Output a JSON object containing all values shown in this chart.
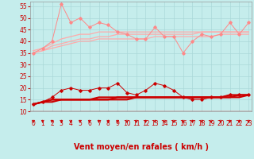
{
  "xlabel": "Vent moyen/en rafales ( km/h )",
  "background_color": "#c5edec",
  "grid_color": "#aad8d8",
  "x": [
    0,
    1,
    2,
    3,
    4,
    5,
    6,
    7,
    8,
    9,
    10,
    11,
    12,
    13,
    14,
    15,
    16,
    17,
    18,
    19,
    20,
    21,
    22,
    23
  ],
  "series_top_pink_spiky": [
    35,
    37,
    40,
    56,
    48,
    50,
    46,
    48,
    47,
    44,
    43,
    41,
    41,
    46,
    42,
    42,
    35,
    40,
    43,
    42,
    43,
    48,
    43,
    48
  ],
  "series_top_line1": [
    36,
    37,
    39,
    41,
    42,
    43,
    43,
    44,
    44,
    44,
    44,
    44,
    44,
    44,
    44,
    44,
    44,
    44,
    44,
    44,
    44,
    44,
    44,
    44
  ],
  "series_top_line2": [
    35,
    36,
    38,
    39,
    40,
    41,
    41,
    42,
    42,
    43,
    43,
    43,
    43,
    43,
    43,
    43,
    43,
    43,
    44,
    44,
    44,
    44,
    44,
    44
  ],
  "series_top_line3": [
    35,
    36,
    37,
    38,
    39,
    40,
    40,
    41,
    41,
    41,
    41,
    41,
    41,
    42,
    42,
    42,
    42,
    42,
    42,
    42,
    43,
    43,
    43,
    43
  ],
  "series_bot_spiky": [
    13,
    14,
    16,
    19,
    20,
    19,
    19,
    20,
    20,
    22,
    18,
    17,
    19,
    22,
    21,
    19,
    16,
    15,
    15,
    16,
    16,
    17,
    17,
    17
  ],
  "series_bot_line1": [
    13,
    14,
    15,
    15,
    15,
    15,
    15,
    16,
    16,
    16,
    16,
    16,
    16,
    16,
    16,
    16,
    16,
    16,
    16,
    16,
    16,
    17,
    17,
    17
  ],
  "series_bot_line2": [
    13,
    14,
    15,
    15,
    15,
    15,
    15,
    15,
    15,
    16,
    16,
    16,
    16,
    16,
    16,
    16,
    16,
    16,
    16,
    16,
    16,
    16,
    17,
    17
  ],
  "series_bot_line3": [
    13,
    14,
    14,
    15,
    15,
    15,
    15,
    15,
    15,
    15,
    15,
    16,
    16,
    16,
    16,
    16,
    16,
    16,
    16,
    16,
    16,
    16,
    16,
    17
  ],
  "ylim": [
    10,
    57
  ],
  "yticks": [
    10,
    15,
    20,
    25,
    30,
    35,
    40,
    45,
    50,
    55
  ],
  "color_spiky_top": "#ff8888",
  "color_lines_top": "#ffaaaa",
  "color_spiky_bot": "#cc0000",
  "color_lines_bot": "#cc0000",
  "arrow_color": "#cc0000",
  "xlabel_color": "#cc0000",
  "tick_label_color": "#cc0000",
  "spine_color": "#999999",
  "xlabel_fontsize": 7,
  "tick_fontsize": 5.5
}
